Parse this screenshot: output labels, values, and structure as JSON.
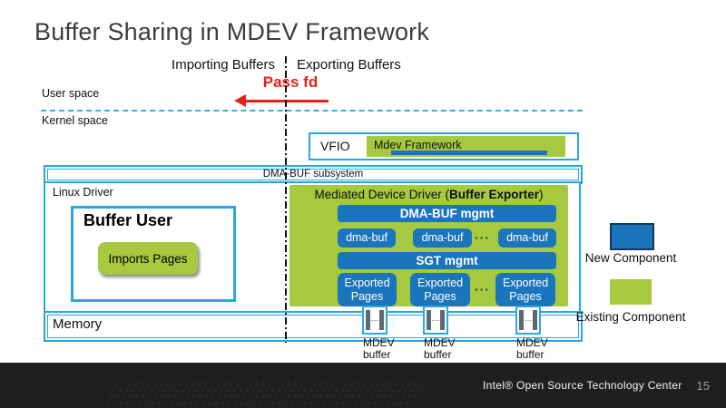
{
  "slide": {
    "title": "Buffer Sharing in MDEV Framework",
    "footer_brand": "Intel® Open Source Technology Center",
    "page_number": "15"
  },
  "flow": {
    "importing": "Importing Buffers",
    "exporting": "Exporting Buffers",
    "pass_fd": "Pass fd"
  },
  "spaces": {
    "user": "User space",
    "kernel": "Kernel space"
  },
  "vfio": {
    "label": "VFIO",
    "framework": "Mdev Framework"
  },
  "dma_buf_subsystem": {
    "label": "DMA-BUF subsystem"
  },
  "linux_driver": {
    "label": "Linux Driver",
    "buffer_user_title": "Buffer User",
    "imports_pages_label": "Imports Pages"
  },
  "mdd": {
    "title_prefix": "Mediated Device Driver (",
    "title_bold": "Buffer Exporter",
    "title_suffix": ")",
    "dma_buf_mgmt": "DMA-BUF mgmt",
    "dma_buf_items": [
      "dma-buf",
      "dma-buf",
      "dma-buf"
    ],
    "row_ellipsis": "···",
    "sgt_mgmt": "SGT mgmt",
    "exported_pages_items": [
      "Exported Pages",
      "Exported Pages",
      "Exported Pages"
    ]
  },
  "memory": {
    "label": "Memory",
    "region_ellipsis": "···",
    "buffer_labels": [
      "MDEV\nbuffer",
      "MDEV\nbuffer",
      "MDEV\nbuffer"
    ]
  },
  "legend": {
    "new_label": "New Component",
    "existing_label": "Existing Component"
  },
  "colors": {
    "component_blue": "#1b75bc",
    "component_green": "#a7c93f",
    "box_border_blue": "#29a8e0",
    "accent_red": "#e2231a",
    "footer_background": "#1f1f1f"
  }
}
